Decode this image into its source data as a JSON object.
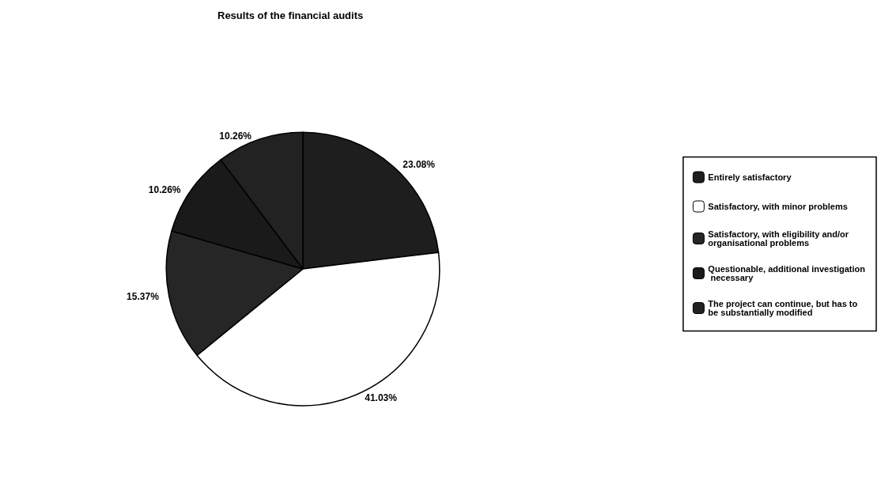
{
  "chart_data": {
    "type": "pie",
    "title": "Results of the financial audits",
    "categories": [
      "Entirely satisfactory",
      "Satisfactory, with minor problems",
      "Satisfactory, with eligibility and/or organisational problems",
      "Questionable, additional investigation necessary",
      "The project can continue, but has to be substantially modified"
    ],
    "values": [
      23.08,
      41.03,
      15.37,
      10.26,
      10.26
    ],
    "value_labels": [
      "23.08%",
      "41.03%",
      "15.37%",
      "10.26%",
      "10.26%"
    ],
    "colors": [
      "#1e1e1e",
      "#ffffff",
      "#262626",
      "#1a1a1a",
      "#222222"
    ],
    "legend": "right"
  }
}
